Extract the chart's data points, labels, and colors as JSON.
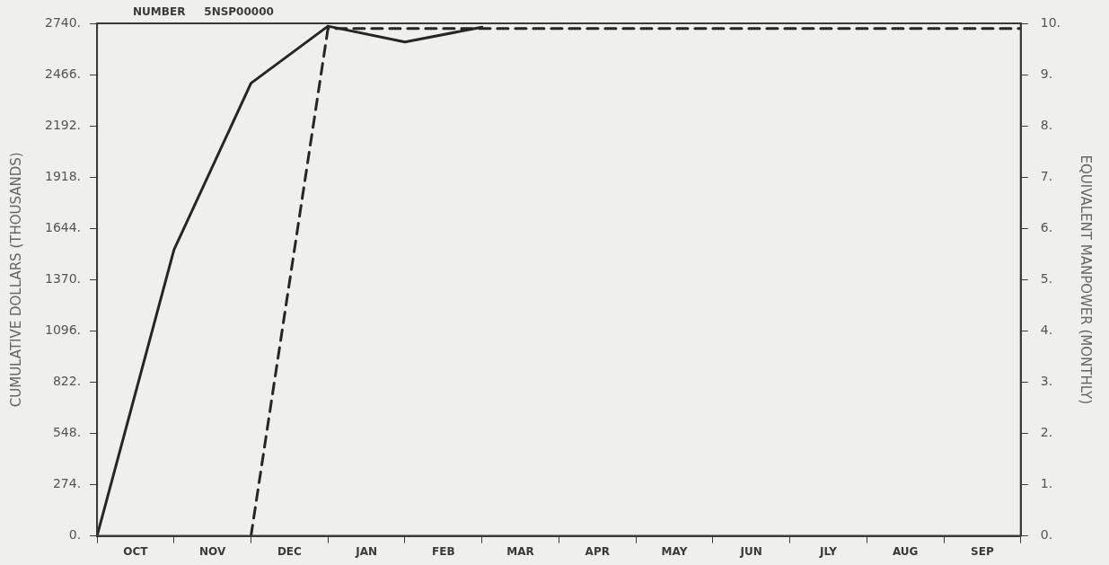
{
  "chart_data": {
    "type": "line",
    "title": "NUMBER     5NSP00000",
    "ylabel": "CUMULATIVE DOLLARS (THOUSANDS)",
    "y2label": "EQUIVALENT MANPOWER (MONTHLY)",
    "categories": [
      null,
      "OCT",
      null,
      "NOV",
      null,
      "DEC",
      null,
      "JAN",
      null,
      "FEB",
      null,
      "MAR",
      null,
      "APR",
      null,
      "MAY",
      null,
      "JUN",
      null,
      "JLY",
      null,
      "AUG",
      null,
      "SEP",
      null
    ],
    "ylim": [
      0,
      2740
    ],
    "yticks": [
      {
        "value": 0,
        "label": "0."
      },
      {
        "value": 274,
        "label": "274."
      },
      {
        "value": 548,
        "label": "548."
      },
      {
        "value": 822,
        "label": "822."
      },
      {
        "value": 1096,
        "label": "1096."
      },
      {
        "value": 1370,
        "label": "1370."
      },
      {
        "value": 1644,
        "label": "1644."
      },
      {
        "value": 1918,
        "label": "1918."
      },
      {
        "value": 2192,
        "label": "2192."
      },
      {
        "value": 2466,
        "label": "2466."
      },
      {
        "value": 2740,
        "label": "2740."
      }
    ],
    "y2lim": [
      0,
      10
    ],
    "y2ticks": [
      {
        "value": 0,
        "label": "0."
      },
      {
        "value": 1,
        "label": "1."
      },
      {
        "value": 2,
        "label": "2."
      },
      {
        "value": 3,
        "label": "3."
      },
      {
        "value": 4,
        "label": "4."
      },
      {
        "value": 5,
        "label": "5."
      },
      {
        "value": 6,
        "label": "6."
      },
      {
        "value": 7,
        "label": "7."
      },
      {
        "value": 8,
        "label": "8."
      },
      {
        "value": 9,
        "label": "9."
      },
      {
        "value": 10,
        "label": "10."
      }
    ],
    "series": [
      {
        "color": "#262626",
        "values": [
          0,
          null,
          1530,
          null,
          2420,
          null,
          2725,
          null,
          2640,
          null,
          2720,
          null,
          null,
          null,
          null,
          null,
          null,
          null,
          null,
          null,
          null,
          null,
          null,
          null,
          null
        ],
        "line_style": "solid"
      },
      {
        "color": "#262626",
        "values": [
          null,
          null,
          null,
          null,
          0,
          null,
          9.9,
          null,
          9.9,
          null,
          9.9,
          null,
          9.9,
          null,
          9.9,
          null,
          9.9,
          null,
          9.9,
          null,
          9.9,
          null,
          9.9,
          null,
          9.9
        ],
        "axis": "y2",
        "line_style": "dashed"
      }
    ],
    "grid": false,
    "legend": false,
    "marker": "none"
  }
}
